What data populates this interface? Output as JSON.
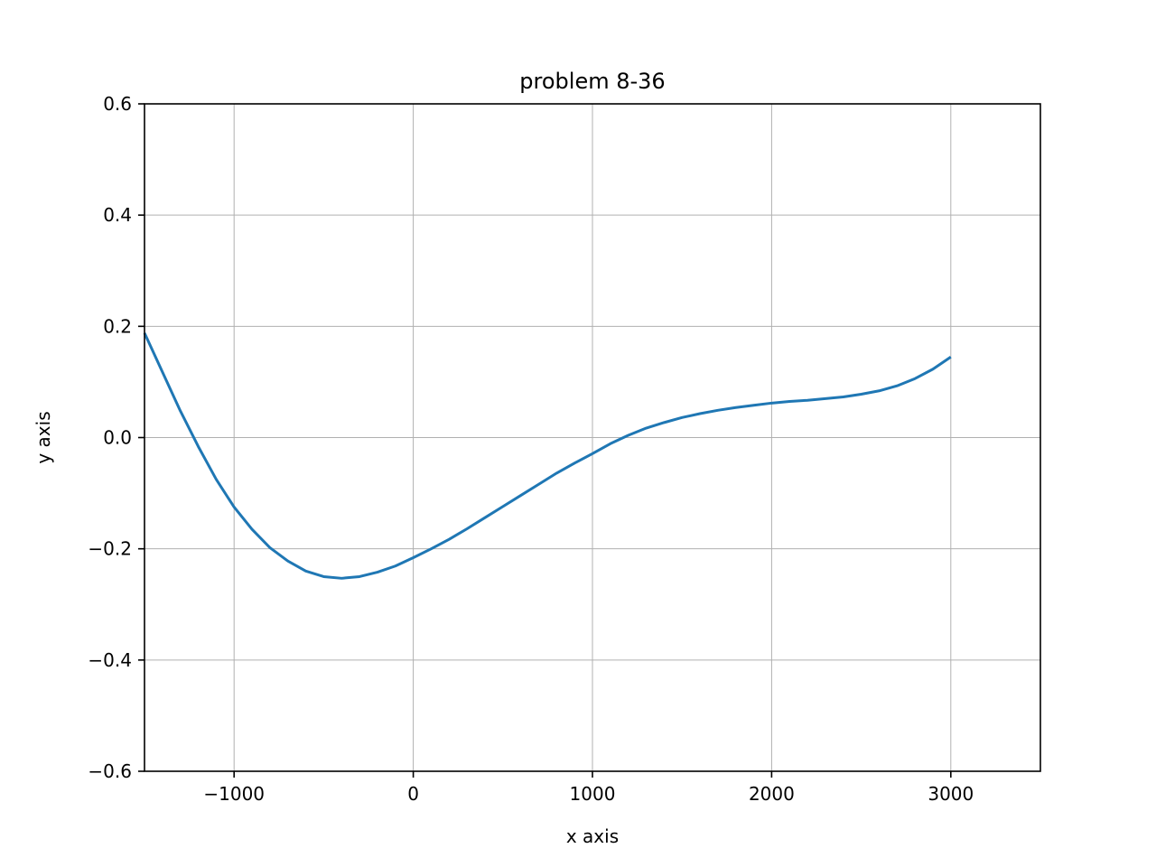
{
  "chart_data": {
    "type": "line",
    "title": "problem 8-36",
    "xlabel": "x axis",
    "ylabel": "y axis",
    "xlim": [
      -1500,
      3500
    ],
    "ylim": [
      -0.6,
      0.6
    ],
    "grid": true,
    "x_ticks": [
      {
        "value": -1000,
        "label": "−1000"
      },
      {
        "value": 0,
        "label": "0"
      },
      {
        "value": 1000,
        "label": "1000"
      },
      {
        "value": 2000,
        "label": "2000"
      },
      {
        "value": 3000,
        "label": "3000"
      }
    ],
    "y_ticks": [
      {
        "value": -0.6,
        "label": "−0.6"
      },
      {
        "value": -0.4,
        "label": "−0.4"
      },
      {
        "value": -0.2,
        "label": "−0.2"
      },
      {
        "value": 0.0,
        "label": "0.0"
      },
      {
        "value": 0.2,
        "label": "0.2"
      },
      {
        "value": 0.4,
        "label": "0.4"
      },
      {
        "value": 0.6,
        "label": "0.6"
      }
    ],
    "colors": {
      "line": "#1f77b4",
      "grid": "#b0b0b0",
      "axes": "#000000"
    },
    "series": [
      {
        "x": [
          -1500,
          -1400,
          -1300,
          -1200,
          -1100,
          -1000,
          -900,
          -800,
          -700,
          -600,
          -500,
          -400,
          -300,
          -200,
          -100,
          0,
          100,
          200,
          300,
          400,
          500,
          600,
          700,
          800,
          900,
          1000,
          1100,
          1200,
          1300,
          1400,
          1500,
          1600,
          1700,
          1800,
          1900,
          2000,
          2100,
          2200,
          2300,
          2400,
          2500,
          2600,
          2700,
          2800,
          2900,
          3000
        ],
        "y": [
          0.188,
          0.118,
          0.048,
          -0.016,
          -0.075,
          -0.125,
          -0.165,
          -0.198,
          -0.222,
          -0.24,
          -0.25,
          -0.253,
          -0.25,
          -0.242,
          -0.231,
          -0.216,
          -0.2,
          -0.183,
          -0.164,
          -0.144,
          -0.124,
          -0.104,
          -0.084,
          -0.064,
          -0.046,
          -0.029,
          -0.011,
          0.004,
          0.017,
          0.027,
          0.036,
          0.043,
          0.049,
          0.054,
          0.058,
          0.062,
          0.065,
          0.067,
          0.07,
          0.073,
          0.078,
          0.084,
          0.093,
          0.106,
          0.123,
          0.145
        ]
      }
    ]
  }
}
